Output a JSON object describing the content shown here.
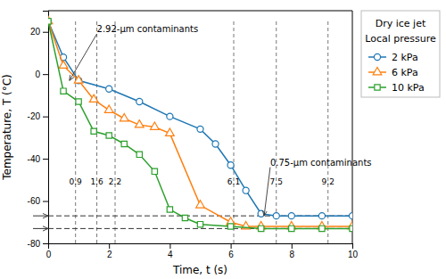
{
  "chart_data": {
    "type": "line",
    "xlabel": "Time, t (s)",
    "ylabel": "Temperature, T (°C)",
    "xlim": [
      0,
      10
    ],
    "ylim": [
      -80,
      30
    ],
    "xticks": [
      0,
      2,
      4,
      6,
      8,
      10
    ],
    "yticks": [
      -80,
      -60,
      -40,
      -20,
      0,
      20
    ],
    "legend": "right",
    "legend_titles": [
      "Dry ice jet",
      "Local pressure"
    ],
    "series": [
      {
        "name": "2 kPa",
        "marker": "circle",
        "x": [
          0,
          0.5,
          1,
          2,
          3,
          4,
          5,
          5.5,
          6,
          6.5,
          7,
          7.5,
          8,
          9,
          10
        ],
        "values": [
          25,
          8,
          -3,
          -7,
          -13,
          -20,
          -26,
          -33,
          -43,
          -55,
          -66,
          -67,
          -67,
          -67,
          -67
        ]
      },
      {
        "name": "6 kPa",
        "marker": "triangle",
        "x": [
          0,
          0.5,
          1,
          1.5,
          2,
          2.5,
          3,
          3.5,
          4,
          5,
          6,
          6.5,
          7,
          8,
          9,
          10
        ],
        "values": [
          25,
          4,
          -3,
          -12,
          -17,
          -21,
          -24,
          -25,
          -28,
          -62,
          -70,
          -72,
          -72,
          -72,
          -72,
          -72
        ]
      },
      {
        "name": "10 kPa",
        "marker": "square",
        "x": [
          0,
          0.5,
          1,
          1.5,
          2,
          2.5,
          3,
          3.5,
          4,
          4.5,
          5,
          6,
          7,
          8,
          9,
          10
        ],
        "values": [
          25,
          -8,
          -13,
          -27,
          -29,
          -33,
          -38,
          -46,
          -64,
          -68,
          -71,
          -72,
          -73,
          -73,
          -73,
          -73
        ]
      }
    ],
    "hlines": [
      -67,
      -73
    ],
    "vlines": {
      "x": [
        0.9,
        1.6,
        2.2,
        6.1,
        7.5,
        9.2
      ],
      "y_range": [
        -80,
        25
      ],
      "label_y": -53
    },
    "axis_arrows": [
      -67,
      -73
    ],
    "annotations": [
      {
        "text": "2.92-μm contaminants",
        "xy": [
          0.7,
          -3
        ],
        "xytext": [
          1.6,
          19
        ]
      },
      {
        "text": "0.75-μm contaminants",
        "xy": [
          7.1,
          -67
        ],
        "xytext": [
          7.3,
          -44
        ]
      }
    ]
  }
}
